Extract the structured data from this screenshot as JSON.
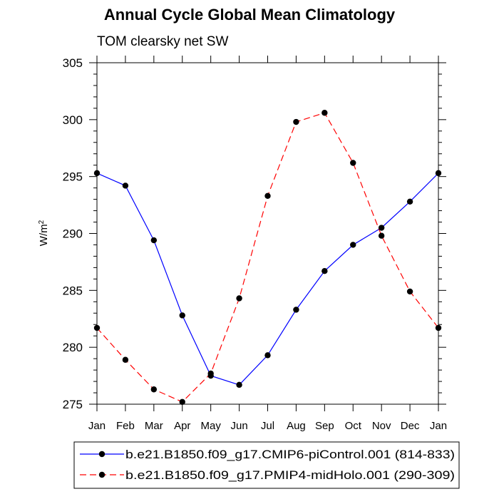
{
  "chart_data": {
    "type": "line",
    "title": "Annual Cycle Global Mean Climatology",
    "subtitle": "TOM clearsky net SW",
    "ylabel_base": "W/m",
    "ylabel_sup": "2",
    "xlabel": "",
    "ylim": [
      275,
      305
    ],
    "yticks": [
      275,
      280,
      285,
      290,
      295,
      300,
      305
    ],
    "categories": [
      "Jan",
      "Feb",
      "Mar",
      "Apr",
      "May",
      "Jun",
      "Jul",
      "Aug",
      "Sep",
      "Oct",
      "Nov",
      "Dec",
      "Jan"
    ],
    "series": [
      {
        "name": "b.e21.B1850.f09_g17.CMIP6-piControl.001 (814-833)",
        "color": "#0000ff",
        "dash": "solid",
        "values": [
          295.3,
          294.2,
          289.4,
          282.8,
          277.5,
          276.7,
          279.3,
          283.3,
          286.7,
          289.0,
          290.5,
          292.8,
          295.3
        ]
      },
      {
        "name": "b.e21.B1850.f09_g17.PMIP4-midHolo.001 (290-309)",
        "color": "#ff0000",
        "dash": "dashed",
        "values": [
          281.7,
          278.9,
          276.3,
          275.2,
          277.7,
          284.3,
          293.3,
          299.8,
          300.6,
          296.2,
          289.8,
          284.9,
          281.7
        ]
      }
    ]
  }
}
